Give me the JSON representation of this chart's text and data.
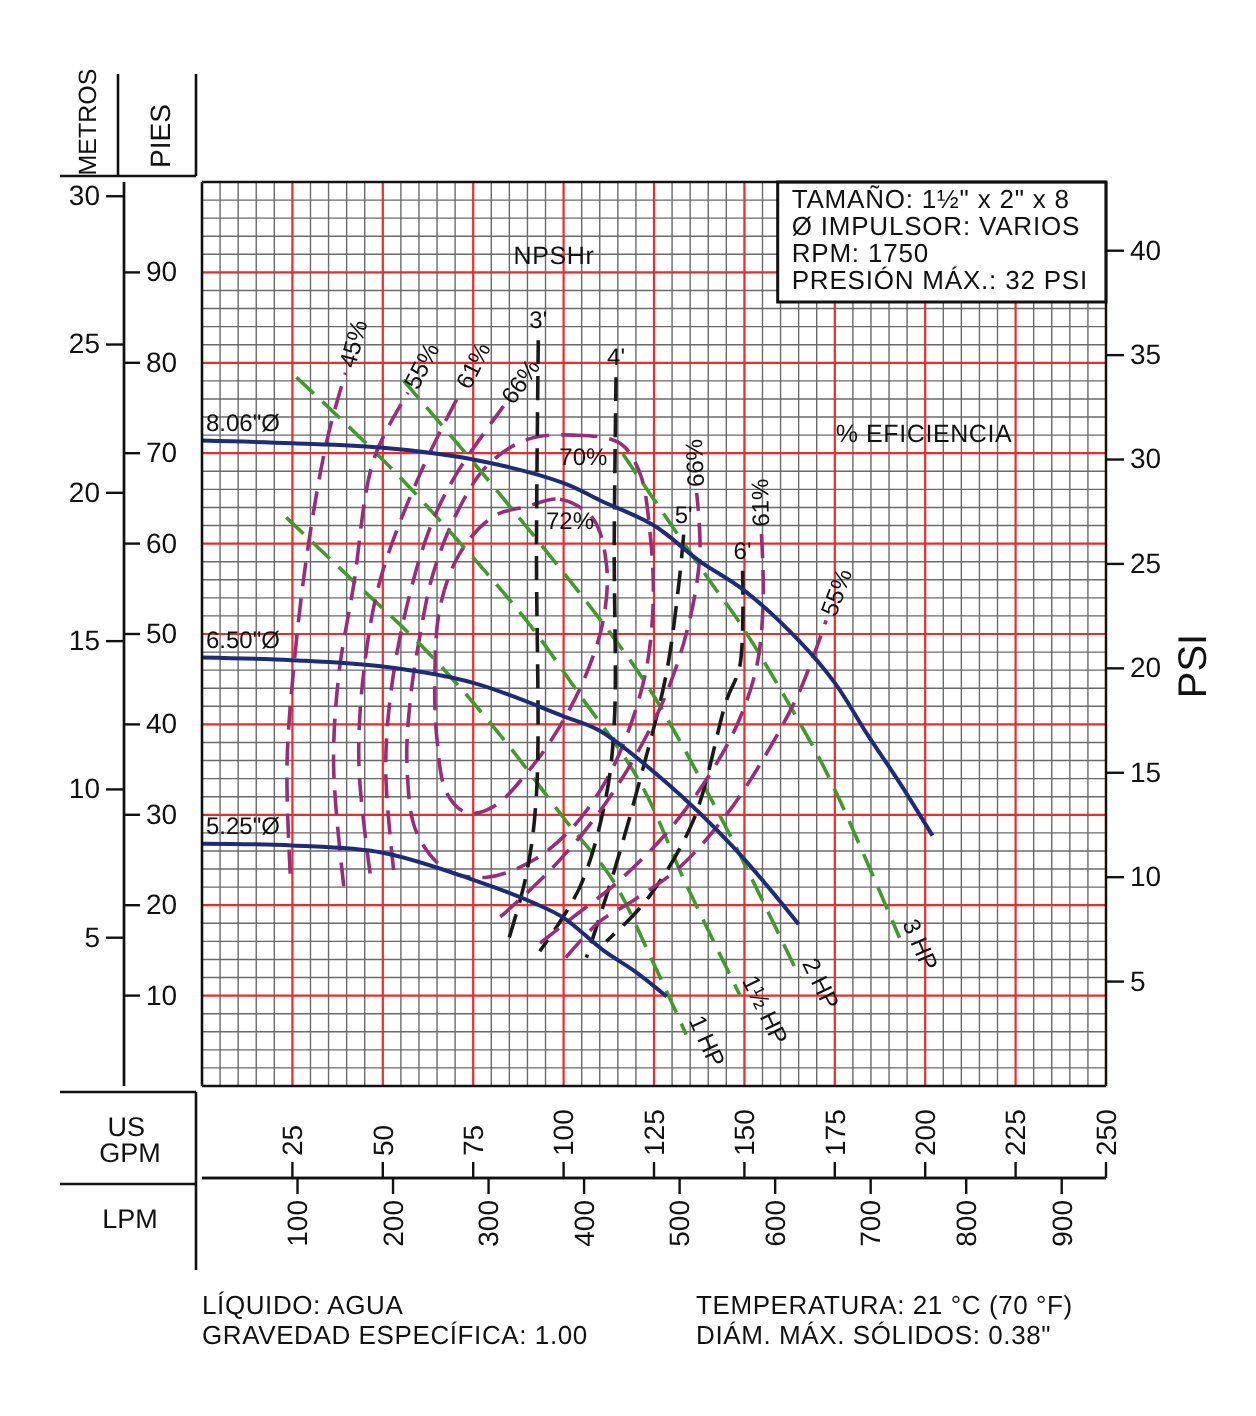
{
  "chart_data": {
    "type": "line",
    "xlabel": "US GPM",
    "x2label": "LPM",
    "ylabel": "PIES",
    "y2label": "PSI",
    "y3label": "METROS",
    "xlim": [
      0,
      250
    ],
    "xticks": [
      {
        "value": 5,
        "label": null
      },
      {
        "value": 10,
        "label": null
      },
      {
        "value": 15,
        "label": null
      },
      {
        "value": 20,
        "label": null
      },
      25,
      {
        "value": 30,
        "label": null
      },
      {
        "value": 35,
        "label": null
      },
      {
        "value": 40,
        "label": null
      },
      {
        "value": 45,
        "label": null
      },
      50,
      {
        "value": 55,
        "label": null
      },
      {
        "value": 60,
        "label": null
      },
      {
        "value": 65,
        "label": null
      },
      {
        "value": 70,
        "label": null
      },
      75,
      {
        "value": 80,
        "label": null
      },
      {
        "value": 85,
        "label": null
      },
      {
        "value": 90,
        "label": null
      },
      {
        "value": 95,
        "label": null
      },
      100,
      {
        "value": 105,
        "label": null
      },
      {
        "value": 110,
        "label": null
      },
      {
        "value": 115,
        "label": null
      },
      {
        "value": 120,
        "label": null
      },
      125,
      {
        "value": 130,
        "label": null
      },
      {
        "value": 135,
        "label": null
      },
      {
        "value": 140,
        "label": null
      },
      {
        "value": 145,
        "label": null
      },
      150,
      {
        "value": 155,
        "label": null
      },
      {
        "value": 160,
        "label": null
      },
      {
        "value": 165,
        "label": null
      },
      {
        "value": 170,
        "label": null
      },
      175,
      {
        "value": 180,
        "label": null
      },
      {
        "value": 185,
        "label": null
      },
      {
        "value": 190,
        "label": null
      },
      {
        "value": 195,
        "label": null
      },
      200,
      {
        "value": 205,
        "label": null
      },
      {
        "value": 210,
        "label": null
      },
      {
        "value": 215,
        "label": null
      },
      {
        "value": 220,
        "label": null
      },
      225,
      {
        "value": 230,
        "label": null
      },
      {
        "value": 235,
        "label": null
      },
      {
        "value": 240,
        "label": null
      },
      {
        "value": 245,
        "label": null
      },
      250
    ],
    "x2lim": [
      0,
      946.35
    ],
    "x2ticks": [
      100,
      200,
      300,
      400,
      500,
      600,
      700,
      800,
      900
    ],
    "ylim": [
      0,
      100
    ],
    "yticks": [
      {
        "value": 2,
        "label": null
      },
      {
        "value": 4,
        "label": null
      },
      {
        "value": 6,
        "label": null
      },
      {
        "value": 8,
        "label": null
      },
      10,
      {
        "value": 12,
        "label": null
      },
      {
        "value": 14,
        "label": null
      },
      {
        "value": 16,
        "label": null
      },
      {
        "value": 18,
        "label": null
      },
      20,
      {
        "value": 22,
        "label": null
      },
      {
        "value": 24,
        "label": null
      },
      {
        "value": 26,
        "label": null
      },
      {
        "value": 28,
        "label": null
      },
      30,
      {
        "value": 32,
        "label": null
      },
      {
        "value": 34,
        "label": null
      },
      {
        "value": 36,
        "label": null
      },
      {
        "value": 38,
        "label": null
      },
      40,
      {
        "value": 42,
        "label": null
      },
      {
        "value": 44,
        "label": null
      },
      {
        "value": 46,
        "label": null
      },
      {
        "value": 48,
        "label": null
      },
      50,
      {
        "value": 52,
        "label": null
      },
      {
        "value": 54,
        "label": null
      },
      {
        "value": 56,
        "label": null
      },
      {
        "value": 58,
        "label": null
      },
      60,
      {
        "value": 62,
        "label": null
      },
      {
        "value": 64,
        "label": null
      },
      {
        "value": 66,
        "label": null
      },
      {
        "value": 68,
        "label": null
      },
      70,
      {
        "value": 72,
        "label": null
      },
      {
        "value": 74,
        "label": null
      },
      {
        "value": 76,
        "label": null
      },
      {
        "value": 78,
        "label": null
      },
      80,
      {
        "value": 82,
        "label": null
      },
      {
        "value": 84,
        "label": null
      },
      {
        "value": 86,
        "label": null
      },
      {
        "value": 88,
        "label": null
      },
      90,
      {
        "value": 92,
        "label": null
      },
      {
        "value": 94,
        "label": null
      },
      {
        "value": 96,
        "label": null
      },
      {
        "value": 98,
        "label": null
      }
    ],
    "y2lim": [
      0,
      43.29
    ],
    "y2ticks": [
      5,
      10,
      15,
      20,
      25,
      30,
      35,
      40
    ],
    "y3lim": [
      0,
      30.48
    ],
    "y3ticks": [
      5,
      10,
      15,
      20,
      25,
      30
    ],
    "grid": true,
    "series": [
      {
        "name": "1 HP",
        "color": "#3f9c2a",
        "line_style": "dashed",
        "x": [
          23.3,
          39.9,
          62.9,
          82.3,
          100.7,
          113.7,
          123.8,
          133.9
        ],
        "values": [
          62.9,
          56.6,
          47.8,
          38.9,
          29.3,
          22.7,
          14.5,
          5.7
        ]
      },
      {
        "name": "1½ HP",
        "color": "#3f9c2a",
        "line_style": "dashed",
        "x": [
          26.1,
          50.2,
          65.7,
          89.7,
          104.4,
          121,
          133.9,
          148.7
        ],
        "values": [
          78.4,
          69.2,
          62.6,
          51.5,
          43.3,
          33.7,
          22.3,
          10.1
        ]
      },
      {
        "name": "2 HP",
        "color": "#3f9c2a",
        "line_style": "dashed",
        "x": [
          55.6,
          82.3,
          111.8,
          124.7,
          143.1,
          153.3,
          165.3
        ],
        "values": [
          78.1,
          65.5,
          50.7,
          43.3,
          30,
          21.9,
          12
        ]
      },
      {
        "name": "3 HP",
        "color": "#3f9c2a",
        "line_style": "dashed",
        "x": [
          116.4,
          140.4,
          149.6,
          168.9,
          175.8,
          192.9
        ],
        "values": [
          69.9,
          55.9,
          50.7,
          37.6,
          32.1,
          16.4
        ]
      },
      {
        "name": "3'",
        "color": "#1a1a1a",
        "line_style": "dashed",
        "x": [
          93,
          92.5,
          92.5,
          89.7,
          84.1
        ],
        "values": [
          82.5,
          60,
          32.3,
          23.4,
          15.3
        ]
      },
      {
        "name": "4'",
        "color": "#1a1a1a",
        "line_style": "dashed",
        "x": [
          114.5,
          114,
          114,
          111.5,
          104.5,
          93.4
        ],
        "values": [
          78.4,
          60,
          40,
          31.5,
          22,
          14.9
        ]
      },
      {
        "name": "5'",
        "color": "#1a1a1a",
        "line_style": "dashed",
        "x": [
          133.2,
          132,
          128.4,
          121,
          113.7,
          106.3
        ],
        "values": [
          61,
          56,
          45.6,
          33.7,
          23.4,
          14.2
        ]
      },
      {
        "name": "6'",
        "color": "#1a1a1a",
        "line_style": "dashed",
        "x": [
          149.5,
          148.7,
          145,
          135.8,
          122.8,
          111.8
        ],
        "values": [
          57,
          46.4,
          42.6,
          29.3,
          20.5,
          16
        ]
      },
      {
        "name": "45%",
        "color": "#9a2c7b",
        "line_style": "dashed",
        "x": [
          24.4,
          23.5,
          25.4,
          29.1,
          34.6,
          39.7
        ],
        "values": [
          23.5,
          35.4,
          46.4,
          59,
          71.5,
          78.9
        ]
      },
      {
        "name": "55%",
        "color": "#9a2c7b",
        "line_style": "dashed",
        "x": [
          39.2,
          36.4,
          37.9,
          41.9,
          47.5,
          57
        ],
        "values": [
          22.1,
          35.4,
          45.7,
          55.3,
          69.3,
          76.7
        ]
      },
      {
        "name": "61%",
        "color": "#9a2c7b",
        "line_style": "dashed",
        "x": [
          46.5,
          43.4,
          44.7,
          49.3,
          60.4,
          71.4
        ],
        "values": [
          23.5,
          35.4,
          45.7,
          56,
          67.8,
          76.7
        ]
      },
      {
        "name": "66%",
        "color": "#9a2c7b",
        "line_style": "dashed",
        "x": [
          53,
          50.8,
          53,
          58.5,
          64,
          70.5,
          83.4
        ],
        "values": [
          23.9,
          35.4,
          45.7,
          56,
          62.7,
          67.8,
          75.2
        ]
      },
      {
        "name": "66%",
        "color": "#9a2c7b",
        "line_style": "dashed",
        "x": [
          82.5,
          95.4,
          108.2,
          119.3,
          128.5,
          134.9,
          137.7,
          136.8
        ],
        "values": [
          18.7,
          23.5,
          29.4,
          36.1,
          43.5,
          51.6,
          59,
          65.6
        ]
      },
      {
        "name": "61%",
        "color": "#9a2c7b",
        "line_style": "dashed",
        "x": [
          93.5,
          102.7,
          115.6,
          128.5,
          139.5,
          147.8,
          153.4,
          155.2,
          154.7
        ],
        "values": [
          15.8,
          18.7,
          22.8,
          28,
          33.9,
          39.8,
          46.4,
          53.8,
          61.2
        ]
      },
      {
        "name": "55%",
        "color": "#9a2c7b",
        "line_style": "dashed",
        "x": [
          100.6,
          110,
          119.2,
          132.1,
          145,
          156,
          165.3,
          172.6
        ],
        "values": [
          14.2,
          18.2,
          20.5,
          24.2,
          30,
          36.7,
          43.7,
          51.5
        ]
      },
      {
        "name": "8.06\"Ø",
        "color": "#1d2b7b",
        "line_style": "solid",
        "x": [
          0,
          25,
          50,
          75,
          100,
          110,
          125,
          137.5,
          150,
          165,
          175,
          184,
          193,
          202
        ],
        "values": [
          71.4,
          71.1,
          70.6,
          69.3,
          66.7,
          64.8,
          62,
          58.1,
          54.8,
          49.3,
          44.6,
          38.9,
          33.5,
          27.7
        ]
      },
      {
        "name": "6.50\"Ø",
        "color": "#1d2b7b",
        "line_style": "solid",
        "x": [
          0,
          25,
          50,
          75,
          100,
          110,
          128,
          147,
          165
        ],
        "values": [
          47.4,
          47.1,
          46.4,
          44.6,
          40.9,
          39.3,
          33.7,
          26.4,
          17.9
        ]
      },
      {
        "name": "5.25\"Ø",
        "color": "#1d2b7b",
        "line_style": "solid",
        "x": [
          0,
          25,
          50,
          75,
          92,
          100,
          111,
          120,
          128.5
        ],
        "values": [
          26.8,
          26.6,
          25.8,
          22.8,
          20.2,
          18.6,
          15,
          12.6,
          9.9
        ]
      }
    ],
    "annotations": [
      "NPSHr",
      "% EFICIENCIA",
      "70%",
      "72%",
      "TAMAÑO: 1½\" x 2\" x 8",
      "Ø IMPULSOR: VARIOS",
      "RPM: 1750",
      "PRESIÓN MÁX.: 32 PSI",
      "LÍQUIDO: AGUA",
      "GRAVEDAD ESPECÍFICA: 1.00",
      "TEMPERATURA: 21 °C (70 °F)",
      "DIÁM. MÁX. SÓLIDOS: 0.38\""
    ]
  }
}
